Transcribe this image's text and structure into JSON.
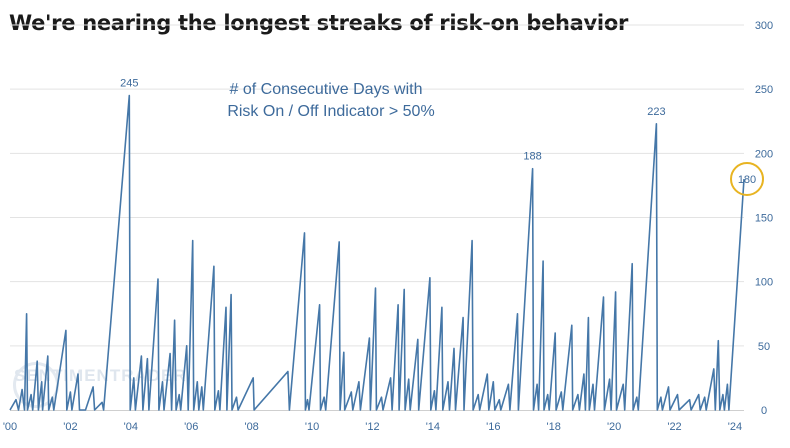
{
  "title": "We're nearing the longest streaks of risk-on behavior",
  "annotation": [
    "# of Consecutive Days with",
    "Risk On / Off Indicator > 50%"
  ],
  "watermark": "SENTIMENTRADER",
  "chart_data": {
    "type": "line",
    "title": "We're nearing the longest streaks of risk-on behavior",
    "xlabel": "",
    "ylabel": "",
    "xlim": [
      2000.0,
      2024.3
    ],
    "ylim": [
      0,
      300
    ],
    "yticks": [
      0,
      50,
      100,
      150,
      200,
      250,
      300
    ],
    "xticks": [
      {
        "x": 2000,
        "label": "'00"
      },
      {
        "x": 2002,
        "label": "'02"
      },
      {
        "x": 2004,
        "label": "'04"
      },
      {
        "x": 2006,
        "label": "'06"
      },
      {
        "x": 2008,
        "label": "'08"
      },
      {
        "x": 2010,
        "label": "'10"
      },
      {
        "x": 2012,
        "label": "'12"
      },
      {
        "x": 2014,
        "label": "'14"
      },
      {
        "x": 2016,
        "label": "'16"
      },
      {
        "x": 2018,
        "label": "'18"
      },
      {
        "x": 2020,
        "label": "'20"
      },
      {
        "x": 2022,
        "label": "'22"
      },
      {
        "x": 2024,
        "label": "'24"
      }
    ],
    "grid": "horizontal",
    "y_axis_side": "right",
    "series": [
      {
        "color": "#4577a8",
        "points": [
          [
            2000.0,
            0
          ],
          [
            2000.2,
            8
          ],
          [
            2000.28,
            0
          ],
          [
            2000.4,
            16
          ],
          [
            2000.48,
            0
          ],
          [
            2000.55,
            75
          ],
          [
            2000.58,
            0
          ],
          [
            2000.7,
            12
          ],
          [
            2000.75,
            0
          ],
          [
            2000.9,
            38
          ],
          [
            2000.94,
            0
          ],
          [
            2001.05,
            22
          ],
          [
            2001.08,
            0
          ],
          [
            2001.25,
            42
          ],
          [
            2001.28,
            0
          ],
          [
            2001.4,
            10
          ],
          [
            2001.45,
            0
          ],
          [
            2001.85,
            62
          ],
          [
            2001.88,
            0
          ],
          [
            2002.0,
            14
          ],
          [
            2002.05,
            0
          ],
          [
            2002.25,
            28
          ],
          [
            2002.3,
            0
          ],
          [
            2002.5,
            0
          ],
          [
            2002.75,
            18
          ],
          [
            2002.8,
            0
          ],
          [
            2003.05,
            6
          ],
          [
            2003.1,
            0
          ],
          [
            2003.95,
            245
          ],
          [
            2003.98,
            0
          ],
          [
            2004.1,
            25
          ],
          [
            2004.15,
            0
          ],
          [
            2004.35,
            42
          ],
          [
            2004.4,
            0
          ],
          [
            2004.55,
            40
          ],
          [
            2004.6,
            0
          ],
          [
            2004.9,
            102
          ],
          [
            2004.93,
            0
          ],
          [
            2005.05,
            22
          ],
          [
            2005.1,
            0
          ],
          [
            2005.3,
            44
          ],
          [
            2005.35,
            0
          ],
          [
            2005.45,
            70
          ],
          [
            2005.5,
            0
          ],
          [
            2005.6,
            12
          ],
          [
            2005.65,
            0
          ],
          [
            2005.85,
            50
          ],
          [
            2005.9,
            0
          ],
          [
            2006.05,
            132
          ],
          [
            2006.08,
            0
          ],
          [
            2006.2,
            22
          ],
          [
            2006.25,
            0
          ],
          [
            2006.35,
            18
          ],
          [
            2006.4,
            0
          ],
          [
            2006.75,
            112
          ],
          [
            2006.78,
            0
          ],
          [
            2006.9,
            15
          ],
          [
            2006.95,
            0
          ],
          [
            2007.15,
            80
          ],
          [
            2007.18,
            0
          ],
          [
            2007.32,
            90
          ],
          [
            2007.35,
            0
          ],
          [
            2007.5,
            10
          ],
          [
            2007.55,
            0
          ],
          [
            2008.05,
            25
          ],
          [
            2008.08,
            0
          ],
          [
            2009.2,
            30
          ],
          [
            2009.25,
            0
          ],
          [
            2009.75,
            138
          ],
          [
            2009.78,
            0
          ],
          [
            2009.85,
            8
          ],
          [
            2009.9,
            0
          ],
          [
            2010.25,
            82
          ],
          [
            2010.28,
            0
          ],
          [
            2010.4,
            10
          ],
          [
            2010.45,
            0
          ],
          [
            2010.9,
            131
          ],
          [
            2010.93,
            0
          ],
          [
            2011.05,
            45
          ],
          [
            2011.08,
            0
          ],
          [
            2011.3,
            14
          ],
          [
            2011.35,
            0
          ],
          [
            2011.55,
            22
          ],
          [
            2011.6,
            0
          ],
          [
            2011.9,
            56
          ],
          [
            2011.93,
            0
          ],
          [
            2012.1,
            95
          ],
          [
            2012.13,
            0
          ],
          [
            2012.3,
            10
          ],
          [
            2012.35,
            0
          ],
          [
            2012.6,
            25
          ],
          [
            2012.65,
            0
          ],
          [
            2012.85,
            82
          ],
          [
            2012.88,
            0
          ],
          [
            2013.05,
            94
          ],
          [
            2013.08,
            0
          ],
          [
            2013.2,
            24
          ],
          [
            2013.25,
            0
          ],
          [
            2013.5,
            55
          ],
          [
            2013.53,
            0
          ],
          [
            2013.9,
            103
          ],
          [
            2013.93,
            0
          ],
          [
            2014.05,
            15
          ],
          [
            2014.1,
            0
          ],
          [
            2014.3,
            80
          ],
          [
            2014.33,
            0
          ],
          [
            2014.5,
            22
          ],
          [
            2014.55,
            0
          ],
          [
            2014.7,
            48
          ],
          [
            2014.75,
            0
          ],
          [
            2015.0,
            72
          ],
          [
            2015.03,
            0
          ],
          [
            2015.3,
            132
          ],
          [
            2015.33,
            0
          ],
          [
            2015.5,
            12
          ],
          [
            2015.55,
            0
          ],
          [
            2015.8,
            28
          ],
          [
            2015.85,
            0
          ],
          [
            2016.0,
            22
          ],
          [
            2016.05,
            0
          ],
          [
            2016.2,
            8
          ],
          [
            2016.25,
            0
          ],
          [
            2016.5,
            20
          ],
          [
            2016.55,
            0
          ],
          [
            2016.8,
            75
          ],
          [
            2016.83,
            0
          ],
          [
            2017.3,
            188
          ],
          [
            2017.33,
            0
          ],
          [
            2017.45,
            20
          ],
          [
            2017.5,
            0
          ],
          [
            2017.65,
            116
          ],
          [
            2017.68,
            0
          ],
          [
            2017.8,
            12
          ],
          [
            2017.85,
            0
          ],
          [
            2018.05,
            60
          ],
          [
            2018.08,
            0
          ],
          [
            2018.25,
            14
          ],
          [
            2018.3,
            0
          ],
          [
            2018.6,
            66
          ],
          [
            2018.63,
            0
          ],
          [
            2018.8,
            12
          ],
          [
            2018.85,
            0
          ],
          [
            2019.0,
            28
          ],
          [
            2019.05,
            0
          ],
          [
            2019.15,
            72
          ],
          [
            2019.18,
            0
          ],
          [
            2019.3,
            20
          ],
          [
            2019.35,
            0
          ],
          [
            2019.65,
            88
          ],
          [
            2019.68,
            0
          ],
          [
            2019.85,
            24
          ],
          [
            2019.9,
            0
          ],
          [
            2020.05,
            92
          ],
          [
            2020.08,
            0
          ],
          [
            2020.3,
            20
          ],
          [
            2020.35,
            0
          ],
          [
            2020.6,
            114
          ],
          [
            2020.63,
            0
          ],
          [
            2020.75,
            10
          ],
          [
            2020.8,
            0
          ],
          [
            2021.4,
            223
          ],
          [
            2021.43,
            0
          ],
          [
            2021.55,
            10
          ],
          [
            2021.6,
            0
          ],
          [
            2021.8,
            18
          ],
          [
            2021.85,
            0
          ],
          [
            2022.1,
            12
          ],
          [
            2022.15,
            0
          ],
          [
            2022.5,
            8
          ],
          [
            2022.55,
            0
          ],
          [
            2022.8,
            12
          ],
          [
            2022.85,
            0
          ],
          [
            2023.0,
            10
          ],
          [
            2023.05,
            0
          ],
          [
            2023.3,
            32
          ],
          [
            2023.35,
            0
          ],
          [
            2023.45,
            54
          ],
          [
            2023.5,
            0
          ],
          [
            2023.6,
            12
          ],
          [
            2023.65,
            0
          ],
          [
            2023.75,
            20
          ],
          [
            2023.8,
            0
          ],
          [
            2024.3,
            180
          ]
        ]
      }
    ],
    "annotations": [
      {
        "x": 2003.95,
        "y": 245,
        "label": "245"
      },
      {
        "x": 2017.3,
        "y": 188,
        "label": "188"
      },
      {
        "x": 2021.4,
        "y": 223,
        "label": "223"
      },
      {
        "x": 2024.3,
        "y": 180,
        "label": "180",
        "circled": true,
        "circle_color": "#e8b422"
      }
    ]
  }
}
